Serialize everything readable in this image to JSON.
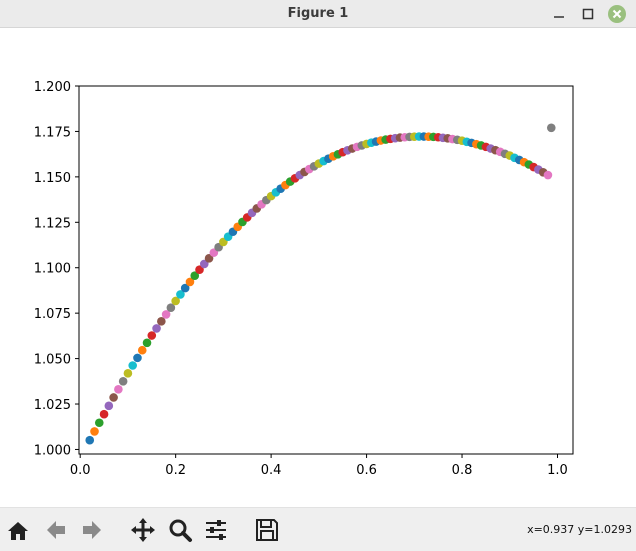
{
  "window": {
    "title": "Figure 1",
    "controls": [
      "minimize",
      "maximize",
      "close"
    ],
    "close_color": "#9ac07f"
  },
  "toolbar": {
    "buttons": [
      {
        "name": "home-button",
        "icon": "home-icon"
      },
      {
        "name": "back-button",
        "icon": "arrow-left-icon"
      },
      {
        "name": "forward-button",
        "icon": "arrow-right-icon"
      },
      {
        "name": "pan-button",
        "icon": "move-icon"
      },
      {
        "name": "zoom-button",
        "icon": "magnifier-icon"
      },
      {
        "name": "configure-subplots-button",
        "icon": "sliders-icon"
      },
      {
        "name": "save-button",
        "icon": "floppy-disk-icon"
      }
    ],
    "coords": "x=0.937 y=1.0293"
  },
  "chart_data": {
    "type": "scatter",
    "title": "",
    "xlabel": "",
    "ylabel": "",
    "xlim": [
      -0.0025,
      1.0325
    ],
    "ylim": [
      0.9975,
      1.2
    ],
    "xticks": [
      "0.0",
      "0.2",
      "0.4",
      "0.6",
      "0.8",
      "1.0"
    ],
    "yticks": [
      "1.000",
      "1.025",
      "1.050",
      "1.075",
      "1.100",
      "1.125",
      "1.150",
      "1.175",
      "1.200"
    ],
    "grid": false,
    "legend": "none",
    "colors": [
      "#1f77b4",
      "#ff7f0e",
      "#2ca02c",
      "#d62728",
      "#9467bd",
      "#8c564b",
      "#e377c2",
      "#7f7f7f",
      "#bcbd22",
      "#17becf"
    ],
    "x": [
      0.02,
      0.03,
      0.04,
      0.05,
      0.06,
      0.07,
      0.08,
      0.09,
      0.1,
      0.11,
      0.12,
      0.13,
      0.14,
      0.15,
      0.16,
      0.17,
      0.18,
      0.19,
      0.2,
      0.21,
      0.22,
      0.23,
      0.24,
      0.25,
      0.26,
      0.27,
      0.28,
      0.29,
      0.3,
      0.31,
      0.32,
      0.33,
      0.34,
      0.35,
      0.36,
      0.37,
      0.38,
      0.39,
      0.4,
      0.41,
      0.42,
      0.43,
      0.44,
      0.45,
      0.46,
      0.47,
      0.48,
      0.49,
      0.5,
      0.51,
      0.52,
      0.53,
      0.54,
      0.55,
      0.56,
      0.57,
      0.58,
      0.59,
      0.6,
      0.61,
      0.62,
      0.63,
      0.64,
      0.65,
      0.66,
      0.67,
      0.68,
      0.69,
      0.7,
      0.71,
      0.72,
      0.73,
      0.74,
      0.75,
      0.76,
      0.77,
      0.78,
      0.79,
      0.8,
      0.81,
      0.82,
      0.83,
      0.84,
      0.85,
      0.86,
      0.87,
      0.88,
      0.89,
      0.9,
      0.91,
      0.92,
      0.93,
      0.94,
      0.95,
      0.96,
      0.97,
      0.98,
      0.987
    ],
    "y": [
      1.0051,
      1.0099,
      1.0147,
      1.0194,
      1.024,
      1.0286,
      1.0331,
      1.0375,
      1.0419,
      1.0462,
      1.0504,
      1.0546,
      1.0587,
      1.0627,
      1.0666,
      1.0705,
      1.0743,
      1.078,
      1.0817,
      1.0853,
      1.0888,
      1.0922,
      1.0956,
      1.0989,
      1.1021,
      1.1052,
      1.1083,
      1.1113,
      1.1142,
      1.1171,
      1.1198,
      1.1225,
      1.1252,
      1.1277,
      1.1302,
      1.1326,
      1.1349,
      1.1372,
      1.1394,
      1.1415,
      1.1435,
      1.1455,
      1.1474,
      1.1492,
      1.151,
      1.1527,
      1.1543,
      1.1558,
      1.1573,
      1.1587,
      1.16,
      1.1613,
      1.1624,
      1.1636,
      1.1646,
      1.1656,
      1.1665,
      1.1673,
      1.1681,
      1.1688,
      1.1694,
      1.17,
      1.1705,
      1.1709,
      1.1713,
      1.1716,
      1.1718,
      1.172,
      1.1721,
      1.1722,
      1.1722,
      1.1721,
      1.172,
      1.1718,
      1.1715,
      1.1712,
      1.1708,
      1.1704,
      1.1699,
      1.1693,
      1.1687,
      1.168,
      1.1673,
      1.1665,
      1.1656,
      1.1647,
      1.1638,
      1.1627,
      1.1617,
      1.1605,
      1.1593,
      1.1581,
      1.1568,
      1.1554,
      1.154,
      1.1525,
      1.151,
      1.177
    ]
  }
}
